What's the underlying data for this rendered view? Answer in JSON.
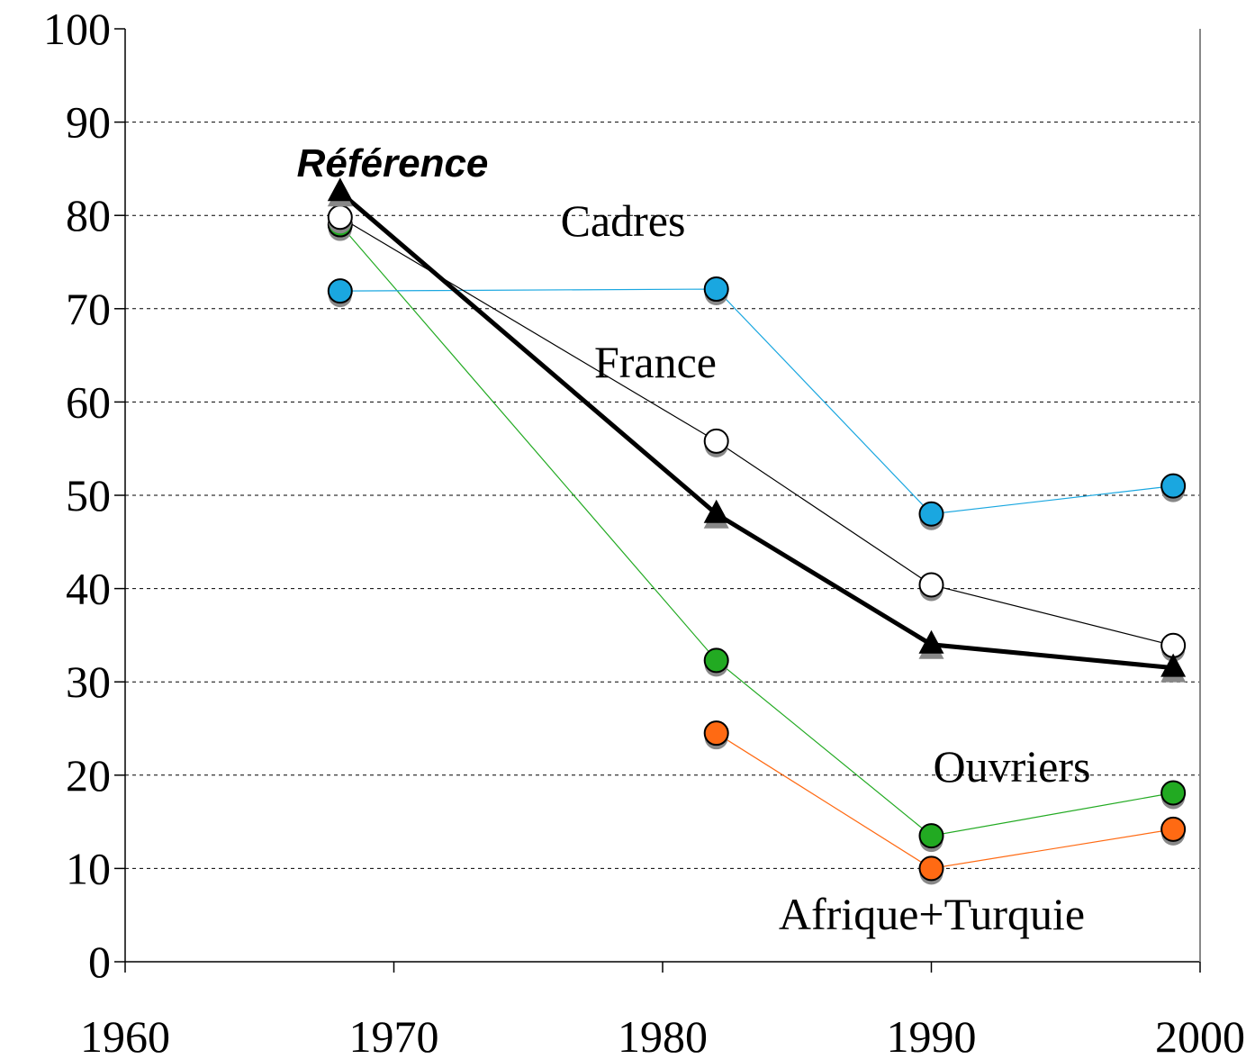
{
  "chart_data": {
    "type": "line",
    "x": [
      1968,
      1982,
      1990,
      1999
    ],
    "series": [
      {
        "name": "Ouvriers",
        "color": "#22aa22",
        "marker": "circle",
        "marker_fill": "#22aa22",
        "values": [
          79,
          32.3,
          13.5,
          18.1
        ]
      },
      {
        "name": "Afrique+Turquie",
        "color": "#ff6a13",
        "marker": "circle",
        "marker_fill": "#ff6a13",
        "values": [
          null,
          24.5,
          10,
          14.2
        ]
      },
      {
        "name": "Cadres",
        "color": "#1aa7e0",
        "marker": "circle",
        "marker_fill": "#1aa7e0",
        "values": [
          71.9,
          72.1,
          48,
          51
        ]
      },
      {
        "name": "France",
        "color": "#000000",
        "marker": "circle",
        "marker_fill": "#ffffff",
        "values": [
          79.8,
          55.8,
          40.4,
          33.9
        ]
      },
      {
        "name": "Référence",
        "color": "#000000",
        "marker": "triangle",
        "marker_fill": "#000000",
        "values": [
          82.5,
          48,
          34,
          31.5
        ]
      }
    ],
    "xlim": [
      1960,
      2000
    ],
    "xticks": [
      1960,
      1970,
      1980,
      1990,
      2000
    ],
    "ylim": [
      0,
      100
    ],
    "yticks": [
      0,
      10,
      20,
      30,
      40,
      50,
      60,
      70,
      80,
      90,
      100
    ],
    "grid": true
  }
}
